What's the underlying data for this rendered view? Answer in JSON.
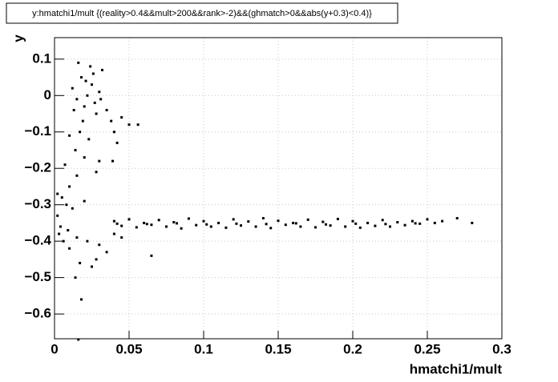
{
  "chart_data": {
    "type": "scatter",
    "title": "y:hmatchi1/mult {(reality>0.4&&mult>200&&rank>-2)&&(ghmatch>0&&abs(y+0.3)<0.4)}",
    "x_label": "hmatchi1/mult",
    "y_label": "y",
    "xlim": [
      0,
      0.3
    ],
    "ylim": [
      -0.668,
      0.159
    ],
    "xticks": [
      0,
      0.05,
      0.1,
      0.15,
      0.2,
      0.25,
      0.3
    ],
    "yticks": [
      {
        "value": -0.6,
        "label": "−0.6"
      },
      {
        "value": -0.5,
        "label": "−0.5"
      },
      {
        "value": -0.4,
        "label": "−0.4"
      },
      {
        "value": -0.3,
        "label": "−0.3"
      },
      {
        "value": -0.2,
        "label": "−0.2"
      },
      {
        "value": -0.1,
        "label": "−0.1"
      },
      0,
      0.1
    ],
    "grid": true,
    "color": "#000000",
    "x": [
      0.012,
      0.015,
      0.018,
      0.02,
      0.022,
      0.025,
      0.027,
      0.03,
      0.016,
      0.024,
      0.032,
      0.028,
      0.019,
      0.035,
      0.013,
      0.021,
      0.026,
      0.031,
      0.017,
      0.023,
      0.038,
      0.04,
      0.045,
      0.05,
      0.056,
      0.042,
      0.01,
      0.014,
      0.02,
      0.03,
      0.039,
      0.028,
      0.007,
      0.01,
      0.015,
      0.005,
      0.008,
      0.012,
      0.02,
      0.002,
      0.003,
      0.006,
      0.01,
      0.015,
      0.022,
      0.03,
      0.035,
      0.028,
      0.017,
      0.014,
      0.018,
      0.016,
      0.025,
      0.065,
      0.04,
      0.045,
      0.002,
      0.004,
      0.009,
      0.04,
      0.05,
      0.06,
      0.07,
      0.08,
      0.09,
      0.1,
      0.11,
      0.12,
      0.13,
      0.14,
      0.15,
      0.16,
      0.17,
      0.18,
      0.19,
      0.2,
      0.21,
      0.22,
      0.23,
      0.24,
      0.25,
      0.26,
      0.27,
      0.28,
      0.045,
      0.055,
      0.065,
      0.075,
      0.085,
      0.095,
      0.105,
      0.115,
      0.125,
      0.135,
      0.145,
      0.155,
      0.165,
      0.175,
      0.185,
      0.195,
      0.205,
      0.215,
      0.225,
      0.235,
      0.245,
      0.255,
      0.042,
      0.062,
      0.082,
      0.102,
      0.122,
      0.142,
      0.162,
      0.182,
      0.202,
      0.222,
      0.242
    ],
    "values": [
      0.02,
      -0.01,
      0.05,
      -0.03,
      0.0,
      0.03,
      -0.02,
      0.01,
      0.09,
      0.08,
      0.07,
      -0.05,
      -0.07,
      -0.04,
      -0.04,
      0.04,
      0.06,
      -0.01,
      -0.1,
      -0.12,
      -0.07,
      -0.1,
      -0.06,
      -0.08,
      -0.08,
      -0.13,
      -0.11,
      -0.15,
      -0.17,
      -0.18,
      -0.18,
      -0.21,
      -0.19,
      -0.25,
      -0.22,
      -0.28,
      -0.3,
      -0.31,
      -0.29,
      -0.27,
      -0.38,
      -0.4,
      -0.42,
      -0.39,
      -0.4,
      -0.41,
      -0.43,
      -0.45,
      -0.46,
      -0.5,
      -0.56,
      -0.67,
      -0.47,
      -0.44,
      -0.38,
      -0.39,
      -0.33,
      -0.36,
      -0.37,
      -0.345,
      -0.34,
      -0.35,
      -0.342,
      -0.348,
      -0.338,
      -0.345,
      -0.35,
      -0.34,
      -0.346,
      -0.337,
      -0.344,
      -0.35,
      -0.341,
      -0.347,
      -0.339,
      -0.345,
      -0.35,
      -0.342,
      -0.348,
      -0.345,
      -0.34,
      -0.345,
      -0.337,
      -0.35,
      -0.358,
      -0.362,
      -0.355,
      -0.36,
      -0.365,
      -0.356,
      -0.36,
      -0.363,
      -0.357,
      -0.36,
      -0.364,
      -0.355,
      -0.36,
      -0.362,
      -0.357,
      -0.36,
      -0.363,
      -0.358,
      -0.36,
      -0.356,
      -0.352,
      -0.35,
      -0.352,
      -0.353,
      -0.351,
      -0.354,
      -0.352,
      -0.353,
      -0.351,
      -0.354,
      -0.352,
      -0.353,
      -0.351
    ]
  }
}
